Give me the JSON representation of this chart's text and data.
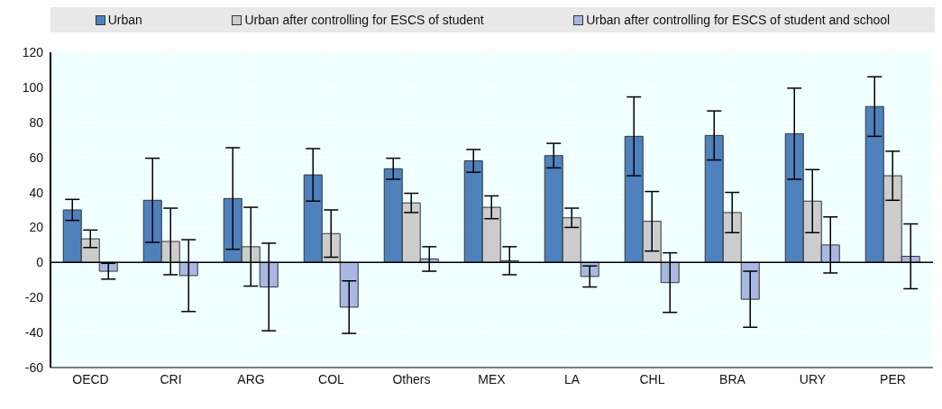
{
  "chart_data": {
    "type": "bar",
    "categories": [
      "OECD",
      "CRI",
      "ARG",
      "COL",
      "Others",
      "MEX",
      "LA",
      "CHL",
      "BRA",
      "URY",
      "PER"
    ],
    "series": [
      {
        "name": "Urban",
        "color": "#4f81bd",
        "values": [
          30,
          35.5,
          36.5,
          50,
          53.5,
          58,
          61,
          72,
          72.5,
          73.5,
          89
        ],
        "errors": [
          6,
          24,
          29,
          15,
          6,
          6.5,
          7,
          22.5,
          14,
          26,
          17
        ]
      },
      {
        "name": "Urban after controlling for ESCS of student",
        "color": "#cccccc",
        "values": [
          13.5,
          12,
          9,
          16.5,
          34,
          31.5,
          25.5,
          23.5,
          28.5,
          35,
          49.5
        ],
        "errors": [
          5,
          19,
          22.5,
          13.5,
          5.5,
          6.5,
          5.5,
          17,
          11.5,
          18,
          14
        ]
      },
      {
        "name": "Urban after controlling for ESCS of student and school",
        "color": "#a9b8e3",
        "values": [
          -5,
          -7.5,
          -14,
          -25.5,
          2,
          1,
          -8,
          -11.5,
          -21,
          10,
          3.5
        ],
        "errors": [
          4.5,
          20.5,
          25,
          15,
          7,
          8,
          6,
          17,
          16,
          16,
          18.5
        ]
      }
    ],
    "ylim": [
      -60,
      120
    ],
    "yticks": [
      -60,
      -40,
      -20,
      0,
      20,
      40,
      60,
      80,
      100,
      120
    ],
    "grid": true,
    "legend": "top"
  }
}
